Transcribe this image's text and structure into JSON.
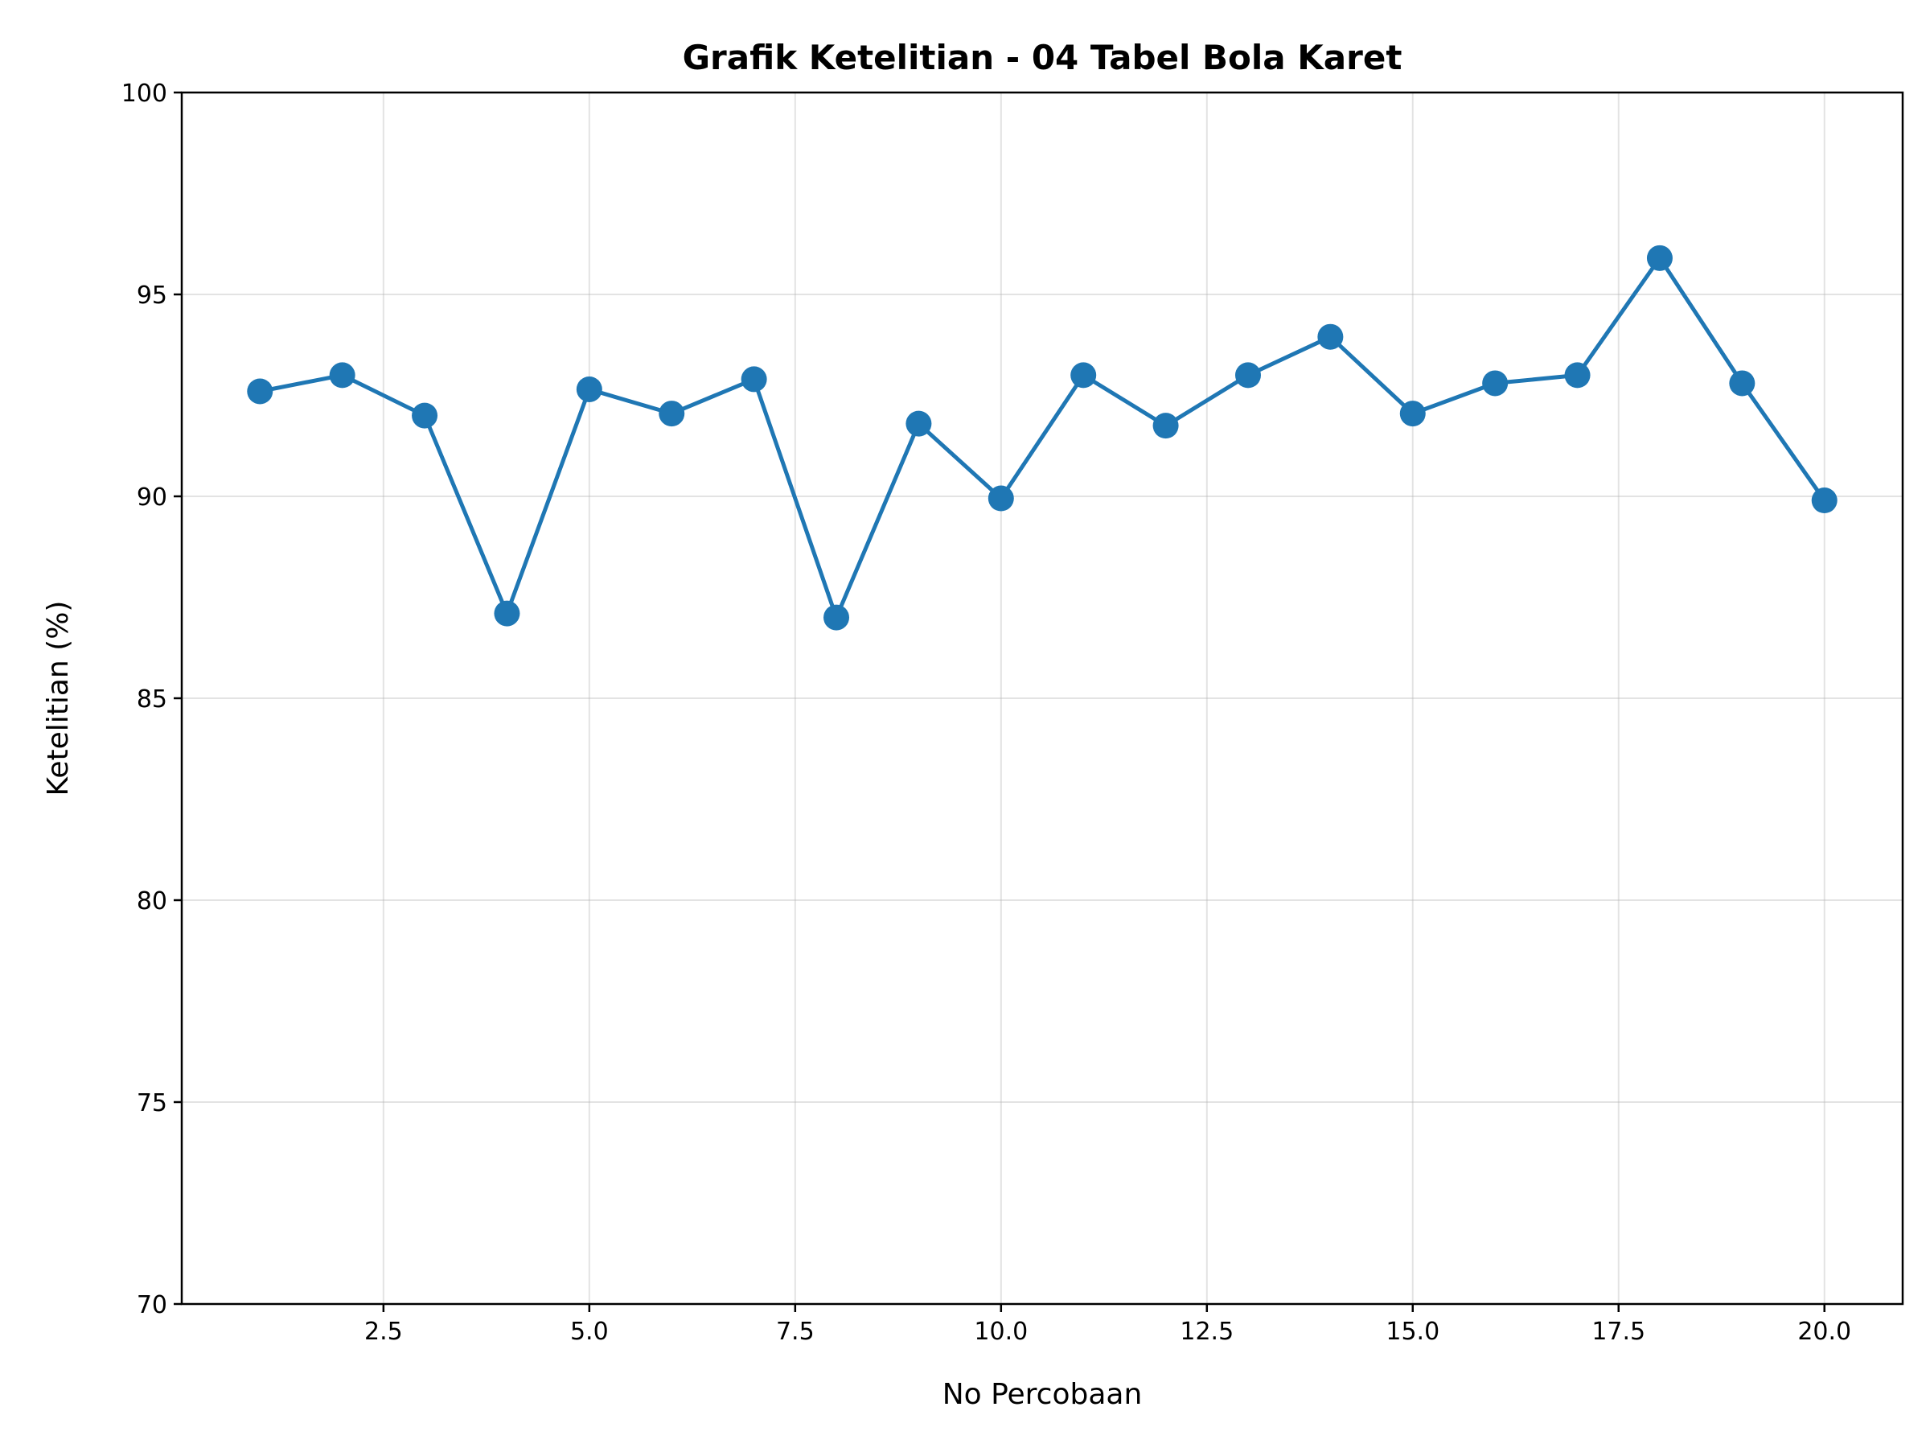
{
  "chart_data": {
    "type": "line",
    "title": "Grafik Ketelitian - 04 Tabel Bola Karet",
    "xlabel": "No Percobaan",
    "ylabel": "Ketelitian (%)",
    "xlim": [
      0.05,
      20.95
    ],
    "ylim": [
      70,
      100
    ],
    "xticks": [
      2.5,
      5.0,
      7.5,
      10.0,
      12.5,
      15.0,
      17.5,
      20.0
    ],
    "xtick_labels": [
      "2.5",
      "5.0",
      "7.5",
      "10.0",
      "12.5",
      "15.0",
      "17.5",
      "20.0"
    ],
    "yticks": [
      70,
      75,
      80,
      85,
      90,
      95,
      100
    ],
    "ytick_labels": [
      "70",
      "75",
      "80",
      "85",
      "90",
      "95",
      "100"
    ],
    "grid": true,
    "series": [
      {
        "color": "#1f77b4",
        "marker": "circle",
        "x": [
          1,
          2,
          3,
          4,
          5,
          6,
          7,
          8,
          9,
          10,
          11,
          12,
          13,
          14,
          15,
          16,
          17,
          18,
          19,
          20
        ],
        "values": [
          92.6,
          93.0,
          92.0,
          87.1,
          92.65,
          92.05,
          92.9,
          87.0,
          91.8,
          89.95,
          93.0,
          91.75,
          93.0,
          93.95,
          92.05,
          92.8,
          93.0,
          95.9,
          92.8,
          89.9
        ]
      }
    ]
  }
}
